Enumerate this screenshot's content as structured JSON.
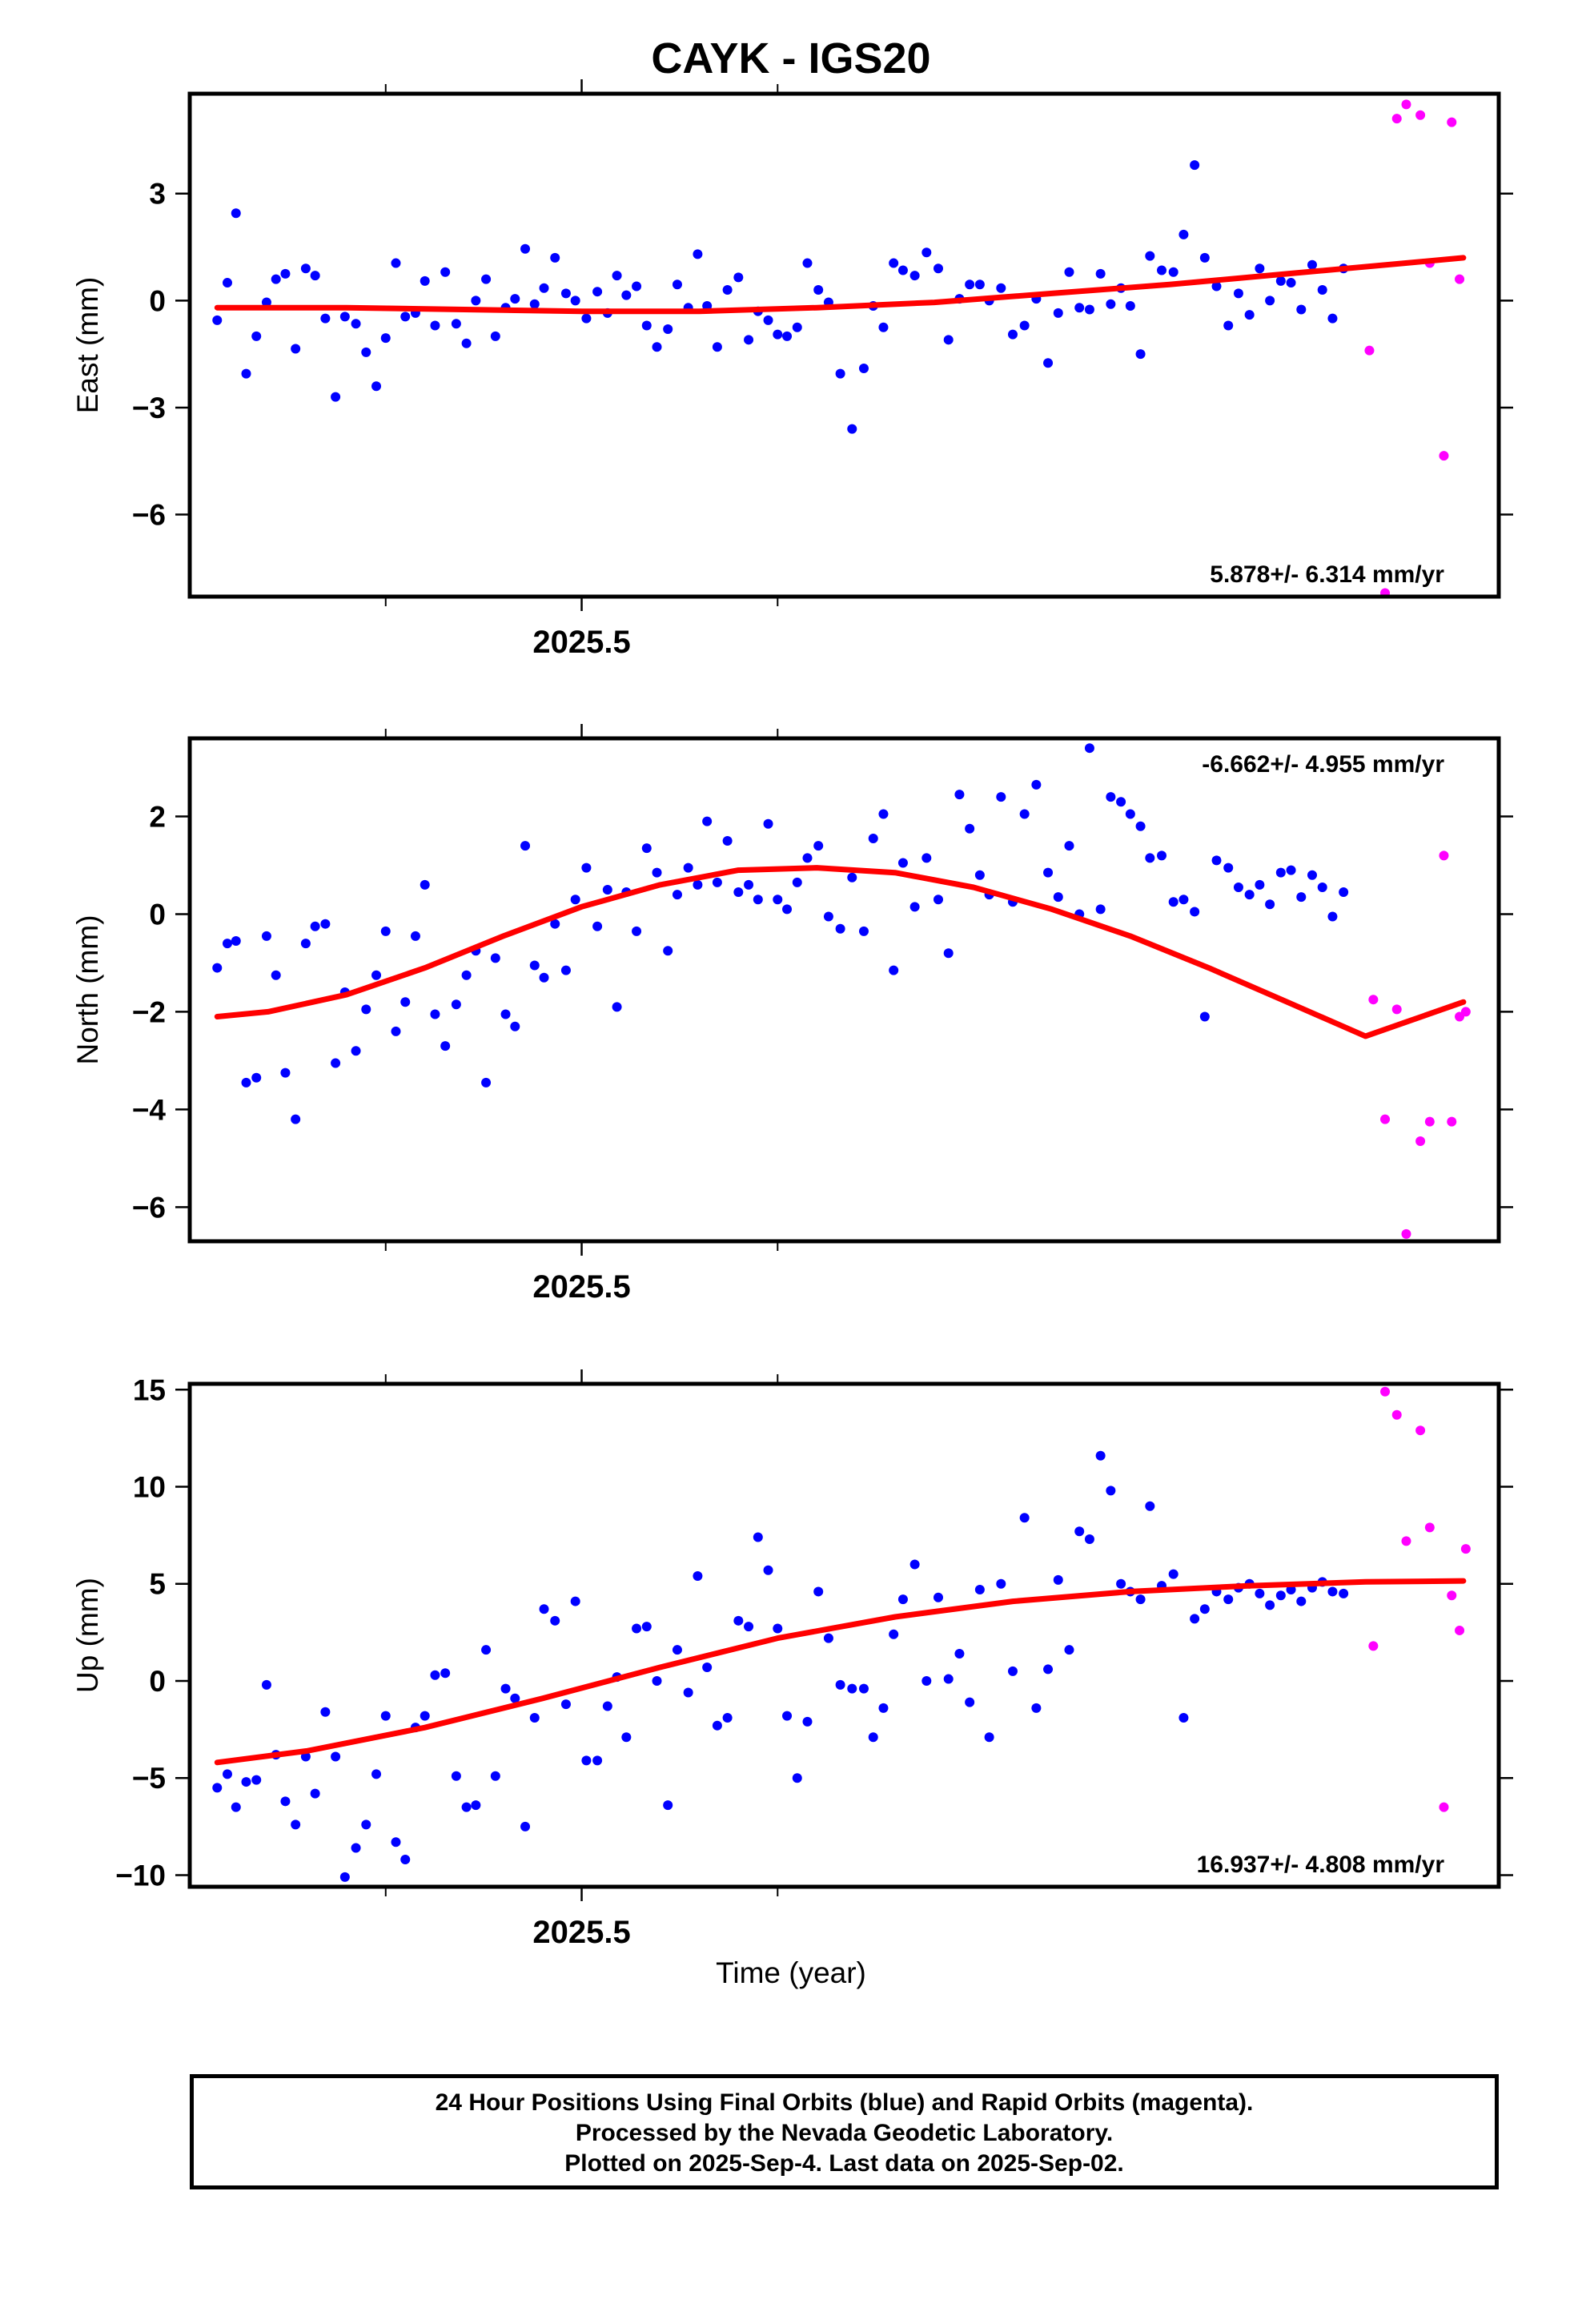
{
  "title": "CAYK - IGS20",
  "x_axis_label": "Time (year)",
  "footer": {
    "line1": "24 Hour Positions Using Final Orbits (blue) and Rapid Orbits (magenta).",
    "line2": "Processed by the Nevada Geodetic Laboratory.",
    "line3": "Plotted on 2025-Sep-4. Last data on 2025-Sep-02."
  },
  "colors": {
    "final": "#0000ff",
    "rapid": "#ff00ff",
    "fit": "#ff0000",
    "frame": "#000000"
  },
  "chart_data": [
    {
      "type": "scatter",
      "ylabel": "East (mm)",
      "xlabel": "",
      "x_tick_label": "2025.5",
      "xlim": [
        2025.0,
        2026.67
      ],
      "ylim": [
        -8.3,
        5.8
      ],
      "yticks": [
        3,
        0,
        -3,
        -6
      ],
      "rate_text": "5.878+/- 6.314 mm/yr",
      "rate_position": "bottom-right",
      "series": [
        {
          "name": "Final Orbits",
          "color": "#0000ff",
          "x": [
            2025.035,
            2025.048,
            2025.059,
            2025.072,
            2025.085,
            2025.098,
            2025.11,
            2025.122,
            2025.135,
            2025.148,
            2025.16,
            2025.173,
            2025.186,
            2025.198,
            2025.212,
            2025.225,
            2025.238,
            2025.25,
            2025.263,
            2025.275,
            2025.288,
            2025.3,
            2025.313,
            2025.326,
            2025.34,
            2025.353,
            2025.365,
            2025.378,
            2025.39,
            2025.403,
            2025.415,
            2025.428,
            2025.44,
            2025.452,
            2025.466,
            2025.48,
            2025.492,
            2025.506,
            2025.52,
            2025.533,
            2025.545,
            2025.557,
            2025.57,
            2025.583,
            2025.596,
            2025.61,
            2025.622,
            2025.636,
            2025.648,
            2025.66,
            2025.673,
            2025.686,
            2025.7,
            2025.713,
            2025.725,
            2025.738,
            2025.75,
            2025.762,
            2025.775,
            2025.788,
            2025.802,
            2025.815,
            2025.83,
            2025.845,
            2025.86,
            2025.872,
            2025.885,
            2025.898,
            2025.91,
            2025.925,
            2025.94,
            2025.955,
            2025.968,
            2025.982,
            2025.995,
            2026.008,
            2026.02,
            2026.035,
            2026.05,
            2026.065,
            2026.08,
            2026.095,
            2026.108,
            2026.122,
            2026.135,
            2026.148,
            2026.162,
            2026.175,
            2026.188,
            2026.2,
            2026.213,
            2026.225,
            2026.24,
            2026.255,
            2026.268,
            2026.282,
            2026.295,
            2026.31,
            2026.325,
            2026.338,
            2026.352,
            2026.365,
            2026.378,
            2026.392,
            2026.405,
            2026.418,
            2026.432,
            2026.445,
            2026.458,
            2026.472
          ],
          "y": [
            -0.55,
            0.5,
            2.45,
            -2.05,
            -1.0,
            -0.05,
            0.6,
            0.75,
            -1.35,
            0.9,
            0.7,
            -0.5,
            -2.7,
            -0.45,
            -0.65,
            -1.45,
            -2.4,
            -1.05,
            1.05,
            -0.45,
            -0.35,
            0.55,
            -0.7,
            0.8,
            -0.65,
            -1.2,
            0.0,
            0.6,
            -1.0,
            -0.2,
            0.05,
            1.45,
            -0.1,
            0.35,
            1.2,
            0.2,
            0.0,
            -0.5,
            0.25,
            -0.35,
            0.7,
            0.15,
            0.4,
            -0.7,
            -1.3,
            -0.8,
            0.45,
            -0.2,
            1.3,
            -0.15,
            -1.3,
            0.3,
            0.65,
            -1.1,
            -0.3,
            -0.55,
            -0.95,
            -1.0,
            -0.75,
            1.05,
            0.3,
            -0.05,
            -2.05,
            -3.6,
            -1.9,
            -0.15,
            -0.75,
            1.05,
            0.85,
            0.7,
            1.35,
            0.9,
            -1.1,
            0.05,
            0.45,
            0.45,
            0.0,
            0.35,
            -0.95,
            -0.7,
            0.05,
            -1.75,
            -0.35,
            0.8,
            -0.2,
            -0.25,
            0.75,
            -0.1,
            0.35,
            -0.15,
            -1.5,
            1.25,
            0.85,
            0.8,
            1.85,
            3.8,
            1.2,
            0.4,
            -0.7,
            0.2,
            -0.4,
            0.9,
            0.0,
            0.55,
            0.5,
            -0.25,
            1.0,
            0.3,
            -0.5,
            0.9
          ]
        },
        {
          "name": "Rapid Orbits",
          "color": "#ff00ff",
          "x": [
            2026.505,
            2026.525,
            2026.54,
            2026.552,
            2026.57,
            2026.582,
            2026.6,
            2026.61,
            2026.62
          ],
          "y": [
            -1.4,
            -8.2,
            5.1,
            5.5,
            5.2,
            1.05,
            -4.35,
            5.0,
            0.6
          ]
        }
      ],
      "fit": {
        "name": "Trend",
        "color": "#ff0000",
        "x": [
          2025.035,
          2025.2,
          2025.35,
          2025.5,
          2025.65,
          2025.8,
          2025.95,
          2026.1,
          2026.25,
          2026.4,
          2026.55,
          2026.625
        ],
        "y": [
          -0.2,
          -0.2,
          -0.25,
          -0.3,
          -0.3,
          -0.2,
          -0.05,
          0.2,
          0.45,
          0.75,
          1.05,
          1.2
        ]
      }
    },
    {
      "type": "scatter",
      "ylabel": "North (mm)",
      "xlabel": "",
      "x_tick_label": "2025.5",
      "xlim": [
        2025.0,
        2026.67
      ],
      "ylim": [
        -6.7,
        3.6
      ],
      "yticks": [
        2,
        0,
        -2,
        -4,
        -6
      ],
      "rate_text": "-6.662+/- 4.955 mm/yr",
      "rate_position": "top-right",
      "series": [
        {
          "name": "Final Orbits",
          "color": "#0000ff",
          "x": [
            2025.035,
            2025.048,
            2025.059,
            2025.072,
            2025.085,
            2025.098,
            2025.11,
            2025.122,
            2025.135,
            2025.148,
            2025.16,
            2025.173,
            2025.186,
            2025.198,
            2025.212,
            2025.225,
            2025.238,
            2025.25,
            2025.263,
            2025.275,
            2025.288,
            2025.3,
            2025.313,
            2025.326,
            2025.34,
            2025.353,
            2025.365,
            2025.378,
            2025.39,
            2025.403,
            2025.415,
            2025.428,
            2025.44,
            2025.452,
            2025.466,
            2025.48,
            2025.492,
            2025.506,
            2025.52,
            2025.533,
            2025.545,
            2025.557,
            2025.57,
            2025.583,
            2025.596,
            2025.61,
            2025.622,
            2025.636,
            2025.648,
            2025.66,
            2025.673,
            2025.686,
            2025.7,
            2025.713,
            2025.725,
            2025.738,
            2025.75,
            2025.762,
            2025.775,
            2025.788,
            2025.802,
            2025.815,
            2025.83,
            2025.845,
            2025.86,
            2025.872,
            2025.885,
            2025.898,
            2025.91,
            2025.925,
            2025.94,
            2025.955,
            2025.968,
            2025.982,
            2025.995,
            2026.008,
            2026.02,
            2026.035,
            2026.05,
            2026.065,
            2026.08,
            2026.095,
            2026.108,
            2026.122,
            2026.135,
            2026.148,
            2026.162,
            2026.175,
            2026.188,
            2026.2,
            2026.213,
            2026.225,
            2026.24,
            2026.255,
            2026.268,
            2026.282,
            2026.295,
            2026.31,
            2026.325,
            2026.338,
            2026.352,
            2026.365,
            2026.378,
            2026.392,
            2026.405,
            2026.418,
            2026.432,
            2026.445,
            2026.458,
            2026.472
          ],
          "y": [
            -1.1,
            -0.6,
            -0.55,
            -3.45,
            -3.35,
            -0.45,
            -1.25,
            -3.25,
            -4.2,
            -0.6,
            -0.25,
            -0.2,
            -3.05,
            -1.6,
            -2.8,
            -1.95,
            -1.25,
            -0.35,
            -2.4,
            -1.8,
            -0.45,
            0.6,
            -2.05,
            -2.7,
            -1.85,
            -1.25,
            -0.75,
            -3.45,
            -0.9,
            -2.05,
            -2.3,
            1.4,
            -1.05,
            -1.3,
            -0.2,
            -1.15,
            0.3,
            0.95,
            -0.25,
            0.5,
            -1.9,
            0.45,
            -0.35,
            1.35,
            0.85,
            -0.75,
            0.4,
            0.95,
            0.6,
            1.9,
            0.65,
            1.5,
            0.45,
            0.6,
            0.3,
            1.85,
            0.3,
            0.1,
            0.65,
            1.15,
            1.4,
            -0.05,
            -0.3,
            0.75,
            -0.35,
            1.55,
            2.05,
            -1.15,
            1.05,
            0.15,
            1.15,
            0.3,
            -0.8,
            2.45,
            1.75,
            0.8,
            0.4,
            2.4,
            0.25,
            2.05,
            2.65,
            0.85,
            0.35,
            1.4,
            0.0,
            3.4,
            0.1,
            2.4,
            2.3,
            2.05,
            1.8,
            1.15,
            1.2,
            0.25,
            0.3,
            0.05,
            -2.1,
            1.1,
            0.95,
            0.55,
            0.4,
            0.6,
            0.2,
            0.85,
            0.9,
            0.35,
            0.8,
            0.55,
            -0.05,
            0.45
          ]
        },
        {
          "name": "Rapid Orbits",
          "color": "#ff00ff",
          "x": [
            2026.51,
            2026.525,
            2026.54,
            2026.552,
            2026.57,
            2026.582,
            2026.6,
            2026.61,
            2026.62,
            2026.628
          ],
          "y": [
            -1.75,
            -4.2,
            -1.95,
            -6.55,
            -4.65,
            -4.25,
            1.2,
            -4.25,
            -2.1,
            -2.0
          ]
        }
      ],
      "fit": {
        "name": "Trend",
        "color": "#ff0000",
        "x": [
          2025.035,
          2025.1,
          2025.2,
          2025.3,
          2025.4,
          2025.5,
          2025.6,
          2025.7,
          2025.8,
          2025.9,
          2026.0,
          2026.1,
          2026.2,
          2026.3,
          2026.4,
          2026.5,
          2026.6,
          2026.625
        ],
        "y": [
          -2.1,
          -2.0,
          -1.65,
          -1.1,
          -0.45,
          0.15,
          0.6,
          0.9,
          0.95,
          0.85,
          0.55,
          0.1,
          -0.45,
          -1.1,
          -1.8,
          -2.5,
          -3.2,
          -1.8
        ]
      }
    },
    {
      "type": "scatter",
      "ylabel": "Up (mm)",
      "xlabel": "Time (year)",
      "x_tick_label": "2025.5",
      "xlim": [
        2025.0,
        2026.67
      ],
      "ylim": [
        -10.6,
        15.3
      ],
      "yticks": [
        15,
        10,
        5,
        0,
        -5,
        -10
      ],
      "rate_text": "16.937+/- 4.808 mm/yr",
      "rate_position": "bottom-right",
      "series": [
        {
          "name": "Final Orbits",
          "color": "#0000ff",
          "x": [
            2025.035,
            2025.048,
            2025.059,
            2025.072,
            2025.085,
            2025.098,
            2025.11,
            2025.122,
            2025.135,
            2025.148,
            2025.16,
            2025.173,
            2025.186,
            2025.198,
            2025.212,
            2025.225,
            2025.238,
            2025.25,
            2025.263,
            2025.275,
            2025.288,
            2025.3,
            2025.313,
            2025.326,
            2025.34,
            2025.353,
            2025.365,
            2025.378,
            2025.39,
            2025.403,
            2025.415,
            2025.428,
            2025.44,
            2025.452,
            2025.466,
            2025.48,
            2025.492,
            2025.506,
            2025.52,
            2025.533,
            2025.545,
            2025.557,
            2025.57,
            2025.583,
            2025.596,
            2025.61,
            2025.622,
            2025.636,
            2025.648,
            2025.66,
            2025.673,
            2025.686,
            2025.7,
            2025.713,
            2025.725,
            2025.738,
            2025.75,
            2025.762,
            2025.775,
            2025.788,
            2025.802,
            2025.815,
            2025.83,
            2025.845,
            2025.86,
            2025.872,
            2025.885,
            2025.898,
            2025.91,
            2025.925,
            2025.94,
            2025.955,
            2025.968,
            2025.982,
            2025.995,
            2026.008,
            2026.02,
            2026.035,
            2026.05,
            2026.065,
            2026.08,
            2026.095,
            2026.108,
            2026.122,
            2026.135,
            2026.148,
            2026.162,
            2026.175,
            2026.188,
            2026.2,
            2026.213,
            2026.225,
            2026.24,
            2026.255,
            2026.268,
            2026.282,
            2026.295,
            2026.31,
            2026.325,
            2026.338,
            2026.352,
            2026.365,
            2026.378,
            2026.392,
            2026.405,
            2026.418,
            2026.432,
            2026.445,
            2026.458,
            2026.472
          ],
          "y": [
            -5.5,
            -4.8,
            -6.5,
            -5.2,
            -5.1,
            -0.2,
            -3.8,
            -6.2,
            -7.4,
            -3.9,
            -5.8,
            -1.6,
            -3.9,
            -10.1,
            -8.6,
            -7.4,
            -4.8,
            -1.8,
            -8.3,
            -9.2,
            -2.4,
            -1.8,
            0.3,
            0.4,
            -4.9,
            -6.5,
            -6.4,
            1.6,
            -4.9,
            -0.4,
            -0.9,
            -7.5,
            -1.9,
            3.7,
            3.1,
            -1.2,
            4.1,
            -4.1,
            -4.1,
            -1.3,
            0.2,
            -2.9,
            2.7,
            2.8,
            0.0,
            -6.4,
            1.6,
            -0.6,
            5.4,
            0.7,
            -2.3,
            -1.9,
            3.1,
            2.8,
            7.4,
            5.7,
            2.7,
            -1.8,
            -5.0,
            -2.1,
            4.6,
            2.2,
            -0.2,
            -0.4,
            -0.4,
            -2.9,
            -1.4,
            2.4,
            4.2,
            6.0,
            0.0,
            4.3,
            0.1,
            1.4,
            -1.1,
            4.7,
            -2.9,
            5.0,
            0.5,
            8.4,
            -1.4,
            0.6,
            5.2,
            1.6,
            7.7,
            7.3,
            11.6,
            9.8,
            5.0,
            4.6,
            4.2,
            9.0,
            4.9,
            5.5,
            -1.9,
            3.2,
            3.7,
            4.6,
            4.2,
            4.8,
            5.0,
            4.5,
            3.9,
            4.4,
            4.7,
            4.1,
            4.8,
            5.1,
            4.6,
            4.5
          ]
        },
        {
          "name": "Rapid Orbits",
          "color": "#ff00ff",
          "x": [
            2026.51,
            2026.525,
            2026.54,
            2026.552,
            2026.57,
            2026.582,
            2026.6,
            2026.61,
            2026.62,
            2026.628
          ],
          "y": [
            1.8,
            14.9,
            13.7,
            7.2,
            12.9,
            7.9,
            -6.5,
            4.4,
            2.6,
            6.8
          ]
        }
      ],
      "fit": {
        "name": "Trend",
        "color": "#ff0000",
        "x": [
          2025.035,
          2025.15,
          2025.3,
          2025.45,
          2025.6,
          2025.75,
          2025.9,
          2026.05,
          2026.2,
          2026.35,
          2026.5,
          2026.625
        ],
        "y": [
          -4.2,
          -3.6,
          -2.4,
          -0.9,
          0.7,
          2.2,
          3.3,
          4.1,
          4.6,
          4.9,
          5.1,
          5.15
        ]
      }
    }
  ]
}
